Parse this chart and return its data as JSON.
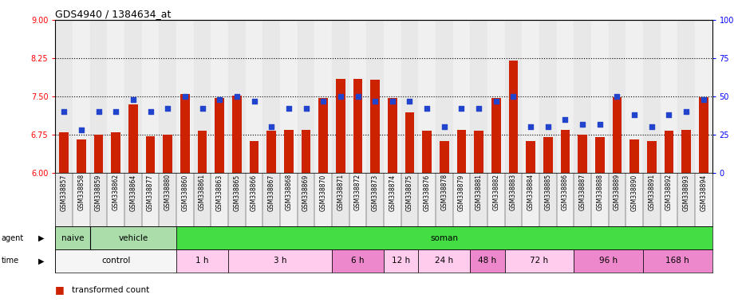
{
  "title": "GDS4940 / 1384634_at",
  "samples": [
    "GSM338857",
    "GSM338858",
    "GSM338859",
    "GSM338862",
    "GSM338864",
    "GSM338877",
    "GSM338880",
    "GSM338860",
    "GSM338861",
    "GSM338863",
    "GSM338865",
    "GSM338866",
    "GSM338867",
    "GSM338868",
    "GSM338869",
    "GSM338870",
    "GSM338871",
    "GSM338872",
    "GSM338873",
    "GSM338874",
    "GSM338875",
    "GSM338876",
    "GSM338878",
    "GSM338879",
    "GSM338881",
    "GSM338882",
    "GSM338883",
    "GSM338884",
    "GSM338885",
    "GSM338886",
    "GSM338887",
    "GSM338888",
    "GSM338889",
    "GSM338890",
    "GSM338891",
    "GSM338892",
    "GSM338893",
    "GSM338894"
  ],
  "bar_values": [
    6.8,
    6.65,
    6.75,
    6.8,
    7.35,
    6.72,
    6.75,
    7.55,
    6.82,
    7.47,
    7.52,
    6.62,
    6.82,
    6.85,
    6.85,
    7.47,
    7.85,
    7.85,
    7.82,
    7.47,
    7.18,
    6.82,
    6.62,
    6.85,
    6.82,
    7.47,
    8.2,
    6.62,
    6.7,
    6.85,
    6.75,
    6.7,
    7.48,
    6.65,
    6.62,
    6.82,
    6.85,
    7.48
  ],
  "percentile_values": [
    40,
    28,
    40,
    40,
    48,
    40,
    42,
    50,
    42,
    48,
    50,
    47,
    30,
    42,
    42,
    47,
    50,
    50,
    47,
    47,
    47,
    42,
    30,
    42,
    42,
    47,
    50,
    30,
    30,
    35,
    32,
    32,
    50,
    38,
    30,
    38,
    40,
    48
  ],
  "ylim_left": [
    6,
    9
  ],
  "ylim_right": [
    0,
    100
  ],
  "yticks_left": [
    6,
    6.75,
    7.5,
    8.25,
    9
  ],
  "yticks_right": [
    0,
    25,
    50,
    75,
    100
  ],
  "bar_color": "#cc2200",
  "dot_color": "#2244cc",
  "grid_lines": [
    6.75,
    7.5,
    8.25
  ],
  "agent_groups": [
    {
      "label": "naive",
      "start": 0,
      "end": 2,
      "color": "#aaddaa"
    },
    {
      "label": "vehicle",
      "start": 2,
      "end": 7,
      "color": "#aaddaa"
    },
    {
      "label": "soman",
      "start": 7,
      "end": 38,
      "color": "#44dd44"
    }
  ],
  "naive_vehicle_divider": 2,
  "time_groups": [
    {
      "label": "control",
      "start": 0,
      "end": 7,
      "color": "#f5f5f5"
    },
    {
      "label": "1 h",
      "start": 7,
      "end": 10,
      "color": "#ffccee"
    },
    {
      "label": "3 h",
      "start": 10,
      "end": 16,
      "color": "#ffccee"
    },
    {
      "label": "6 h",
      "start": 16,
      "end": 19,
      "color": "#ee88cc"
    },
    {
      "label": "12 h",
      "start": 19,
      "end": 21,
      "color": "#ffccee"
    },
    {
      "label": "24 h",
      "start": 21,
      "end": 24,
      "color": "#ffccee"
    },
    {
      "label": "48 h",
      "start": 24,
      "end": 26,
      "color": "#ee88cc"
    },
    {
      "label": "72 h",
      "start": 26,
      "end": 30,
      "color": "#ffccee"
    },
    {
      "label": "96 h",
      "start": 30,
      "end": 34,
      "color": "#ee88cc"
    },
    {
      "label": "168 h",
      "start": 34,
      "end": 38,
      "color": "#ee88cc"
    }
  ]
}
